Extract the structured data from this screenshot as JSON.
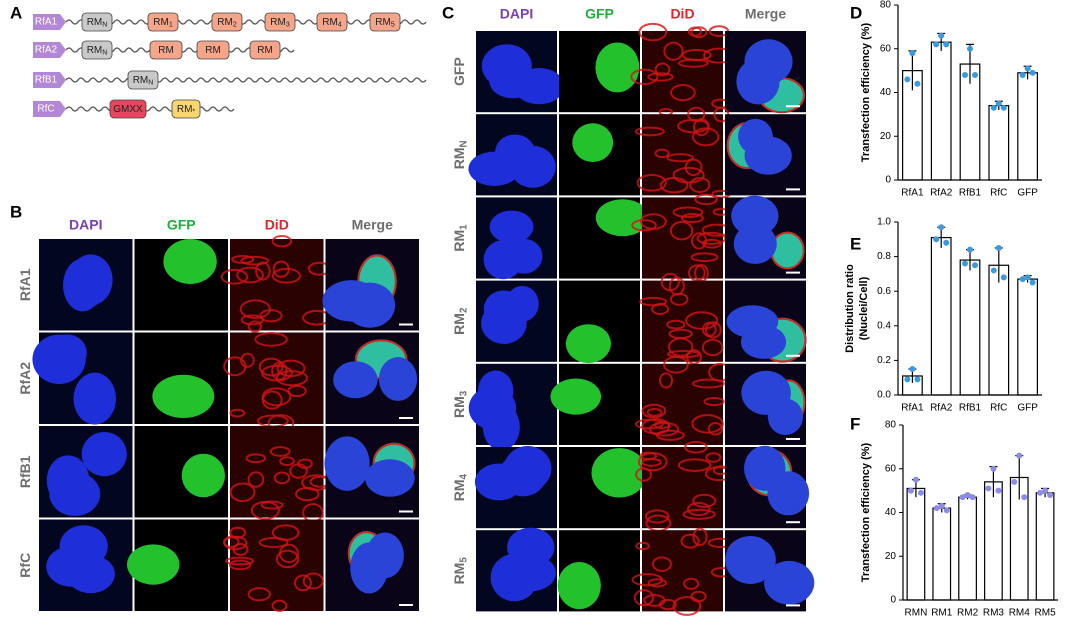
{
  "panel_a": {
    "label": "A",
    "rows": [
      {
        "name": "RfA1",
        "domains": [
          {
            "text": "RM",
            "sub": "N",
            "color": "#c9c9c9"
          },
          {
            "text": "RM",
            "sub": "1",
            "color": "#f4a58a"
          },
          {
            "text": "RM",
            "sub": "2",
            "color": "#f4a58a"
          },
          {
            "text": "RM",
            "sub": "3",
            "color": "#f4a58a"
          },
          {
            "text": "RM",
            "sub": "4",
            "color": "#f4a58a"
          },
          {
            "text": "RM",
            "sub": "5",
            "color": "#f4a58a"
          }
        ]
      },
      {
        "name": "RfA2",
        "domains": [
          {
            "text": "RM",
            "sub": "N",
            "color": "#c9c9c9"
          },
          {
            "text": "RM",
            "color": "#f4a58a"
          },
          {
            "text": "RM",
            "color": "#f4a58a"
          },
          {
            "text": "RM",
            "color": "#f4a58a"
          }
        ]
      },
      {
        "name": "RfB1",
        "domains": [
          {
            "text": "RM",
            "sub": "N",
            "color": "#c9c9c9"
          }
        ]
      },
      {
        "name": "RfC",
        "domains": [
          {
            "text": "GMXX",
            "color": "#e8455e"
          },
          {
            "text": "RM",
            "sub": "*",
            "color": "#f6d66d"
          }
        ]
      }
    ]
  },
  "panel_b": {
    "label": "B",
    "columns": [
      {
        "text": "DAPI",
        "color": "#7b3fb5"
      },
      {
        "text": "GFP",
        "color": "#1fae3c"
      },
      {
        "text": "DiD",
        "color": "#e0242c"
      },
      {
        "text": "Merge",
        "color": "#6e6e6e"
      }
    ],
    "rows": [
      {
        "text": "RfA1"
      },
      {
        "text": "RfA2"
      },
      {
        "text": "RfB1"
      },
      {
        "text": "RfC"
      }
    ]
  },
  "panel_c": {
    "label": "C",
    "columns": [
      {
        "text": "DAPI",
        "color": "#7b3fb5"
      },
      {
        "text": "GFP",
        "color": "#1fae3c"
      },
      {
        "text": "DiD",
        "color": "#e0242c"
      },
      {
        "text": "Merge",
        "color": "#6e6e6e"
      }
    ],
    "rows": [
      {
        "text": "GFP"
      },
      {
        "text": "RM",
        "sub": "N"
      },
      {
        "text": "RM",
        "sub": "1"
      },
      {
        "text": "RM",
        "sub": "2"
      },
      {
        "text": "RM",
        "sub": "3"
      },
      {
        "text": "RM",
        "sub": "4"
      },
      {
        "text": "RM",
        "sub": "5"
      }
    ]
  },
  "chart_data": [
    {
      "type": "bar",
      "panel": "D",
      "ylabel": [
        "Transfection efficiency (%)"
      ],
      "categories": [
        "RfA1",
        "RfA2",
        "RfB1",
        "RfC",
        "GFP"
      ],
      "values": [
        50,
        63,
        53,
        34,
        49
      ],
      "errors": [
        9,
        4,
        9,
        2,
        3
      ],
      "points": [
        [
          58,
          46,
          44
        ],
        [
          66,
          62,
          62
        ],
        [
          60,
          48,
          48
        ],
        [
          35,
          33,
          33
        ],
        [
          51,
          48,
          49
        ]
      ],
      "color": "#ffffff",
      "point_color": "#3b9ade",
      "ylim": [
        0,
        80
      ],
      "yticks": [
        0,
        20,
        40,
        60,
        80
      ]
    },
    {
      "type": "bar",
      "panel": "E",
      "ylabel": [
        "Distribution ratio",
        "(Nuclei/Cell)"
      ],
      "categories": [
        "RfA1",
        "RfA2",
        "RfB1",
        "RfC",
        "GFP"
      ],
      "values": [
        0.11,
        0.91,
        0.78,
        0.75,
        0.67
      ],
      "errors": [
        0.04,
        0.06,
        0.06,
        0.1,
        0.02
      ],
      "points": [
        [
          0.15,
          0.09,
          0.09
        ],
        [
          0.97,
          0.9,
          0.88
        ],
        [
          0.84,
          0.76,
          0.75
        ],
        [
          0.85,
          0.72,
          0.68
        ],
        [
          0.68,
          0.67,
          0.65
        ]
      ],
      "color": "#ffffff",
      "point_color": "#3b9ade",
      "ylim": [
        0,
        1
      ],
      "yticks": [
        {
          "value": 0,
          "label": "0.0"
        },
        {
          "value": 0.2,
          "label": "0.2"
        },
        {
          "value": 0.4,
          "label": "0.4"
        },
        {
          "value": 0.6,
          "label": "0.6"
        },
        {
          "value": 0.8,
          "label": "0.8"
        },
        {
          "value": 1,
          "label": "1.0"
        }
      ]
    },
    {
      "type": "bar",
      "panel": "F",
      "ylabel": [
        "Transfection efficiency (%)"
      ],
      "categories": [
        "RMN",
        "RM1",
        "RM2",
        "RM3",
        "RM4",
        "RM5"
      ],
      "values": [
        51,
        42,
        47,
        54,
        56,
        49
      ],
      "errors": [
        4,
        2,
        1,
        7,
        10,
        2
      ],
      "points": [
        [
          55,
          50,
          49
        ],
        [
          43,
          42,
          41
        ],
        [
          48,
          47,
          47
        ],
        [
          60,
          51,
          50
        ],
        [
          66,
          54,
          47
        ],
        [
          50,
          49,
          48
        ]
      ],
      "color": "#ffffff",
      "point_color": "#8c8ce6",
      "ylim": [
        0,
        80
      ],
      "yticks": [
        0,
        20,
        40,
        60,
        80
      ]
    }
  ]
}
